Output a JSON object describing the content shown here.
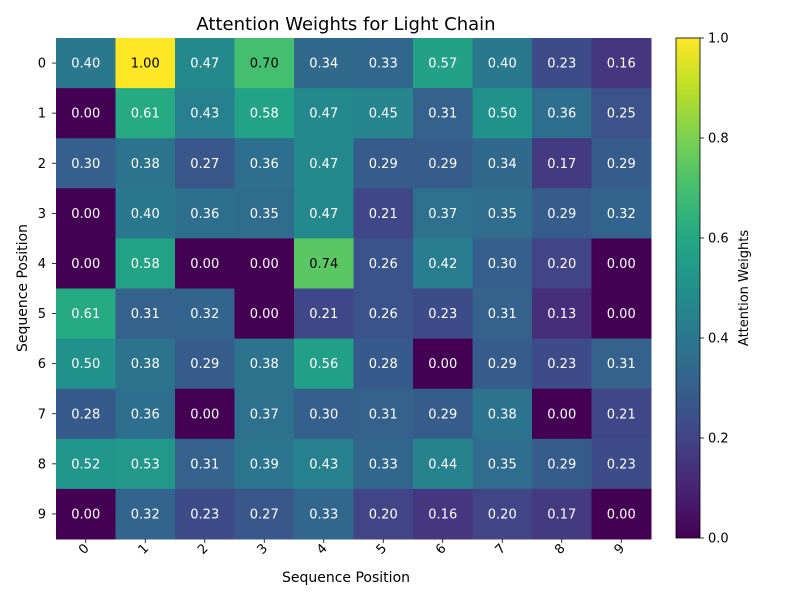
{
  "chart_data": {
    "type": "heatmap",
    "title": "Attention Weights for Light Chain",
    "xlabel": "Sequence Position",
    "ylabel": "Sequence Position",
    "x_categories": [
      "0",
      "1",
      "2",
      "3",
      "4",
      "5",
      "6",
      "7",
      "8",
      "9"
    ],
    "y_categories": [
      "0",
      "1",
      "2",
      "3",
      "4",
      "5",
      "6",
      "7",
      "8",
      "9"
    ],
    "values": [
      [
        0.4,
        1.0,
        0.47,
        0.7,
        0.34,
        0.33,
        0.57,
        0.4,
        0.23,
        0.16
      ],
      [
        0.0,
        0.61,
        0.43,
        0.58,
        0.47,
        0.45,
        0.31,
        0.5,
        0.36,
        0.25
      ],
      [
        0.3,
        0.38,
        0.27,
        0.36,
        0.47,
        0.29,
        0.29,
        0.34,
        0.17,
        0.29
      ],
      [
        0.0,
        0.4,
        0.36,
        0.35,
        0.47,
        0.21,
        0.37,
        0.35,
        0.29,
        0.32
      ],
      [
        0.0,
        0.58,
        0.0,
        0.0,
        0.74,
        0.26,
        0.42,
        0.3,
        0.2,
        0.0
      ],
      [
        0.61,
        0.31,
        0.32,
        0.0,
        0.21,
        0.26,
        0.23,
        0.31,
        0.13,
        0.0
      ],
      [
        0.5,
        0.38,
        0.29,
        0.38,
        0.56,
        0.28,
        0.0,
        0.29,
        0.23,
        0.31
      ],
      [
        0.28,
        0.36,
        0.0,
        0.37,
        0.3,
        0.31,
        0.29,
        0.38,
        0.0,
        0.21
      ],
      [
        0.52,
        0.53,
        0.31,
        0.39,
        0.43,
        0.33,
        0.44,
        0.35,
        0.29,
        0.23
      ],
      [
        0.0,
        0.32,
        0.23,
        0.27,
        0.33,
        0.2,
        0.16,
        0.2,
        0.17,
        0.0
      ]
    ],
    "colormap": "viridis",
    "vmin": 0.0,
    "vmax": 1.0,
    "colorbar": {
      "label": "Attention Weights",
      "ticks": [
        "0.0",
        "0.2",
        "0.4",
        "0.6",
        "0.8",
        "1.0"
      ],
      "placement": "right"
    },
    "x_tick_rotation_deg": 45,
    "text_color_light": "#ffffff",
    "text_color_dark": "#000000",
    "grid": false
  }
}
